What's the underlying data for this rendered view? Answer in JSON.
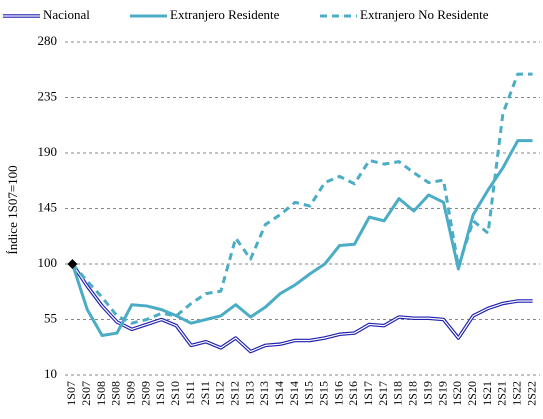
{
  "chart_data": {
    "type": "line",
    "y_label": "Índice 1S07=100",
    "categories": [
      "1S07",
      "2S07",
      "1S08",
      "2S08",
      "1S09",
      "2S09",
      "1S10",
      "2S10",
      "1S11",
      "2S11",
      "1S12",
      "2S12",
      "1S13",
      "2S13",
      "1S14",
      "2S14",
      "1S15",
      "2S15",
      "1S16",
      "2S16",
      "1S17",
      "2S17",
      "1S18",
      "2S18",
      "1S19",
      "2S19",
      "1S20",
      "2S20",
      "1S21",
      "2S21",
      "1S22",
      "2S22"
    ],
    "series": [
      {
        "name": "Nacional",
        "color": "#1f1fb0",
        "style": "double",
        "values": [
          100,
          82,
          66,
          53,
          47,
          51,
          55,
          50,
          34,
          37,
          32,
          40,
          29,
          34,
          35,
          38,
          38,
          40,
          43,
          44,
          51,
          50,
          57,
          56,
          56,
          55,
          40,
          58,
          64,
          68,
          70,
          70
        ]
      },
      {
        "name": "Extranjero Residente",
        "color": "#4bacc6",
        "style": "solid",
        "values": [
          100,
          63,
          42,
          44,
          67,
          66,
          63,
          58,
          52,
          55,
          58,
          67,
          57,
          65,
          76,
          83,
          92,
          100,
          115,
          116,
          138,
          135,
          153,
          143,
          156,
          150,
          96,
          140,
          160,
          178,
          200,
          200
        ]
      },
      {
        "name": "Extranjero No Residente",
        "color": "#4bacc6",
        "style": "dashed",
        "values": [
          100,
          86,
          73,
          58,
          52,
          55,
          60,
          58,
          68,
          76,
          78,
          121,
          104,
          132,
          140,
          150,
          147,
          166,
          171,
          165,
          184,
          181,
          183,
          174,
          166,
          168,
          98,
          135,
          125,
          222,
          254,
          254
        ]
      }
    ],
    "ylim": [
      10,
      280
    ],
    "yticks": [
      10,
      55,
      100,
      145,
      190,
      235,
      280
    ],
    "grid": true
  }
}
